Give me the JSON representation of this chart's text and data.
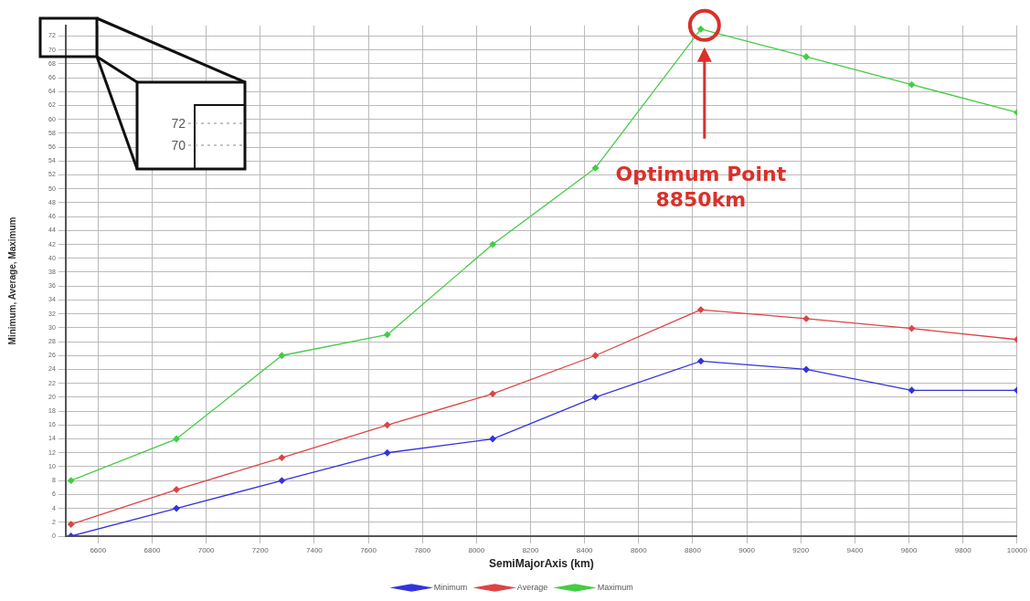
{
  "chart_data": {
    "type": "line",
    "xlabel": "SemiMajorAxis (km)",
    "ylabel": "Minimum, Average, Maximum",
    "x": [
      6500,
      6890,
      7280,
      7670,
      8060,
      8440,
      8830,
      9220,
      9610,
      10000
    ],
    "series": [
      {
        "name": "Minimum",
        "color": "#3333dd",
        "values": [
          0,
          4,
          8,
          12,
          14,
          20,
          25.2,
          24,
          21,
          21
        ]
      },
      {
        "name": "Average",
        "color": "#dd4444",
        "values": [
          1.7,
          6.7,
          11.3,
          16,
          20.5,
          26,
          32.6,
          31.3,
          29.9,
          28.3
        ]
      },
      {
        "name": "Maximum",
        "color": "#44cc44",
        "values": [
          8,
          14,
          26,
          29,
          42,
          53,
          73,
          69,
          65,
          61
        ]
      }
    ],
    "xlim": [
      6480,
      10000
    ],
    "xticks": [
      6600,
      6800,
      7000,
      7200,
      7400,
      7600,
      7800,
      8000,
      8200,
      8400,
      8600,
      8800,
      9000,
      9200,
      9400,
      9600,
      9800,
      10000
    ],
    "ylim": [
      0,
      73.5
    ],
    "yticks": [
      0,
      2,
      4,
      6,
      8,
      10,
      12,
      14,
      16,
      18,
      20,
      22,
      24,
      26,
      28,
      30,
      32,
      34,
      36,
      38,
      40,
      42,
      44,
      46,
      48,
      50,
      52,
      54,
      56,
      58,
      60,
      62,
      64,
      66,
      68,
      70,
      72
    ],
    "annotations": [
      "Optimum Point\n8850km",
      "72",
      "70"
    ],
    "grid": true,
    "legend": "bottom",
    "marker": "diamond",
    "line_style": "solid"
  }
}
